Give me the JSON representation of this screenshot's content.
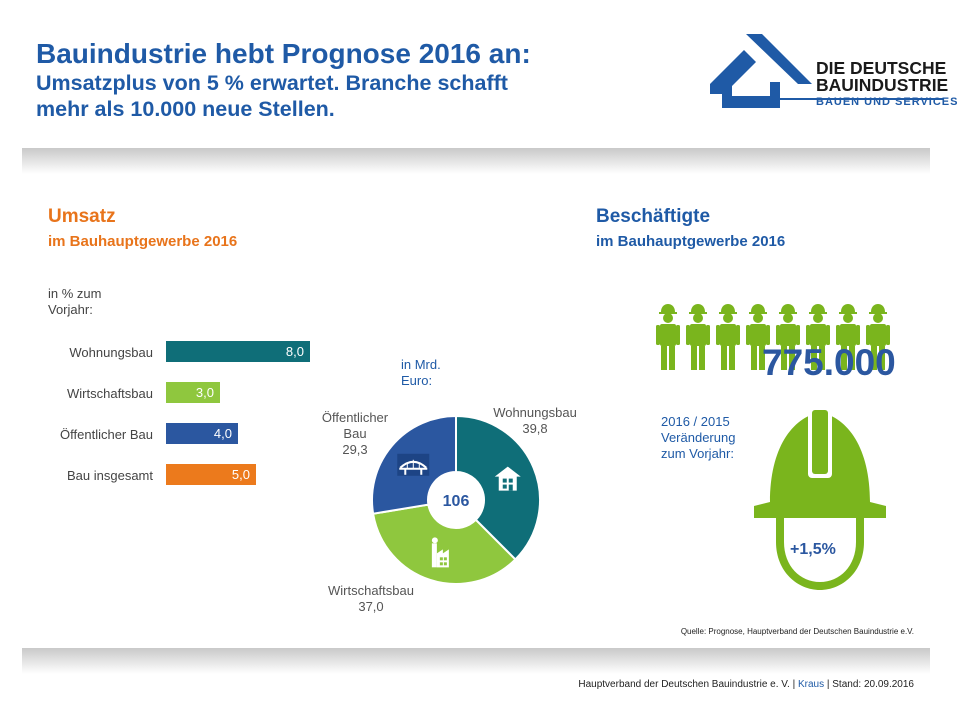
{
  "header": {
    "title_line1": "Bauindustrie hebt Prognose 2016 an:",
    "title_line2": "Umsatzplus von 5 % erwartet. Branche schafft",
    "title_line3": "mehr als 10.000 neue Stellen.",
    "logo_line1": "DIE DEUTSCHE",
    "logo_line2": "BAUINDUSTRIE",
    "logo_line3": "BAUEN UND SERVICES"
  },
  "umsatz": {
    "title": "Umsatz",
    "subtitle": "im Bauhauptgewerbe 2016",
    "unit_note_line1": "in % zum",
    "unit_note_line2": "Vorjahr:"
  },
  "beschaeftigte": {
    "title": "Beschäftigte",
    "subtitle": "im Bauhauptgewerbe 2016",
    "count": "775.000",
    "change_label_line1": "2016 / 2015",
    "change_label_line2": "Veränderung",
    "change_label_line3": "zum Vorjahr:",
    "change_value": "+1,5%",
    "figure_count": 8
  },
  "pie_note": {
    "line1": "in Mrd.",
    "line2": "Euro:",
    "total": "106"
  },
  "colors": {
    "teal": "#0f6e78",
    "lightgreen": "#8fc73e",
    "blue": "#2b57a0",
    "orange": "#ec7a1c",
    "green": "#7ab51d",
    "title_blue": "#1f5aa6",
    "umsatz_orange": "#e8741b"
  },
  "chart_data": [
    {
      "type": "bar",
      "orientation": "horizontal",
      "categories": [
        "Wohnungsbau",
        "Wirtschaftsbau",
        "Öffentlicher Bau",
        "Bau insgesamt"
      ],
      "values": [
        8.0,
        3.0,
        4.0,
        5.0
      ],
      "value_labels": [
        "8,0",
        "3,0",
        "4,0",
        "5,0"
      ],
      "bar_colors": [
        "#0f6e78",
        "#8fc73e",
        "#2b57a0",
        "#ec7a1c"
      ],
      "xlim": [
        0,
        8.0
      ]
    },
    {
      "type": "pie",
      "donut": true,
      "categories": [
        "Wohnungsbau",
        "Wirtschaftsbau",
        "Öffentlicher Bau"
      ],
      "values": [
        39.8,
        37.0,
        29.3
      ],
      "value_labels": [
        "39,8",
        "37,0",
        "29,3"
      ],
      "colors": [
        "#0f6e78",
        "#8fc73e",
        "#2b57a0"
      ],
      "center_label": "106",
      "icons": [
        "house-icon",
        "factory-icon",
        "bridge-icon"
      ]
    }
  ],
  "footer": {
    "source": "Quelle: Prognose, Hauptverband der Deutschen Bauindustrie e.V.",
    "org": "Hauptverband der Deutschen Bauindustrie e. V. |",
    "author": "Kraus",
    "date": "| Stand: 20.09.2016"
  }
}
